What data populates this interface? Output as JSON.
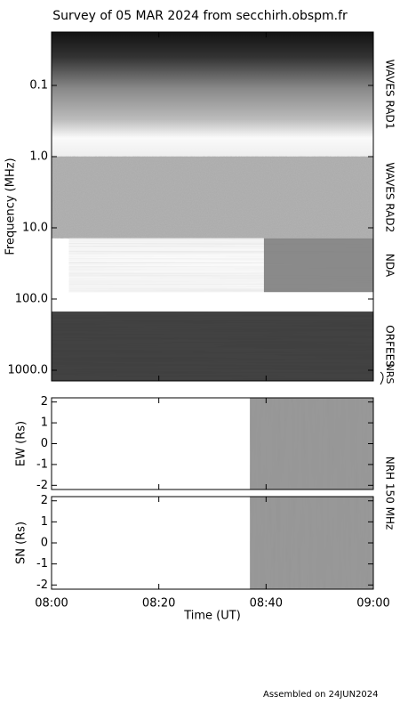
{
  "title": "Survey of 05 MAR 2024 from secchirh.obspm.fr",
  "footer": "Assembled on 24JUN2024",
  "chart_data": [
    {
      "type": "spectrogram",
      "ylabel": "Frequency (MHz)",
      "log_y": true,
      "y_inverted": true,
      "ylim": [
        0.0178,
        1413
      ],
      "yticks": [
        {
          "value": 0.1,
          "label": "0.1"
        },
        {
          "value": 1,
          "label": "1.0"
        },
        {
          "value": 10,
          "label": "10.0"
        },
        {
          "value": 100,
          "label": "100.0"
        },
        {
          "value": 1000,
          "label": "1000.0"
        }
      ],
      "xlim": [
        0,
        60
      ],
      "series": [
        {
          "name": "WAVES RAD1",
          "ylim": [
            0.0178,
            1
          ],
          "xlim": [
            0,
            60
          ]
        },
        {
          "name": "WAVES RAD2",
          "ylim": [
            1,
            14
          ],
          "xlim": [
            0,
            60
          ]
        },
        {
          "name": "NDA",
          "ylim": [
            14,
            80
          ],
          "xlim": [
            3.3,
            60
          ]
        },
        {
          "name": "ORFEES",
          "ylim": [
            150,
            1413
          ],
          "xlim": [
            0,
            60
          ]
        }
      ],
      "bracket_label": "NRS"
    },
    {
      "type": "image",
      "ylabel": "EW (Rs)",
      "ylim": [
        -2.2,
        2.2
      ],
      "yticks": [
        -2,
        -1,
        0,
        1,
        2
      ],
      "xlim": [
        0,
        60
      ],
      "data_xlim": [
        37,
        60
      ]
    },
    {
      "type": "image",
      "ylabel": "SN (Rs)",
      "ylim": [
        -2.2,
        2.2
      ],
      "yticks": [
        -2,
        -1,
        0,
        1,
        2
      ],
      "xlim": [
        0,
        60
      ],
      "data_xlim": [
        37,
        60
      ],
      "xlabel": "Time (UT)",
      "right_label": "NRH 150 MHz",
      "xticks": [
        {
          "value": 0,
          "label": "08:00"
        },
        {
          "value": 20,
          "label": "08:20"
        },
        {
          "value": 40,
          "label": "08:40"
        },
        {
          "value": 60,
          "label": "09:00"
        }
      ]
    }
  ]
}
